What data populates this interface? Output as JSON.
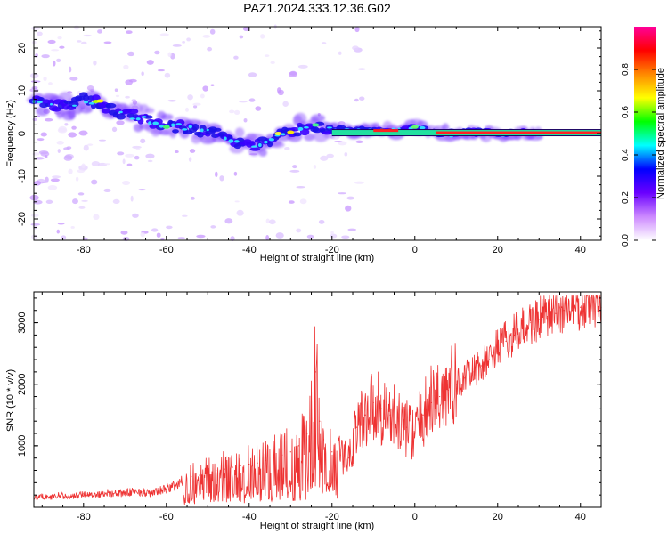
{
  "title": "PAZ1.2024.333.12.36.G02",
  "chart_data": [
    {
      "type": "heatmap",
      "title": "PAZ1.2024.333.12.36.G02",
      "xlabel": "Height of straight line (km)",
      "ylabel": "Frequency (Hz)",
      "xlim": [
        -92,
        45
      ],
      "ylim": [
        -25,
        25
      ],
      "x_ticks": [
        -80,
        -60,
        -40,
        -20,
        0,
        20,
        40
      ],
      "x_tick_labels": [
        "-80",
        "-60",
        "-40",
        "-20",
        "0",
        "20",
        "40"
      ],
      "y_ticks": [
        -20,
        -10,
        0,
        10,
        20
      ],
      "y_tick_labels": [
        "-20",
        "-10",
        "0",
        "10",
        "20"
      ],
      "colorbar": {
        "label": "Normalized spectral amplitude",
        "range": [
          0,
          1
        ],
        "ticks": [
          0.0,
          0.2,
          0.4,
          0.6,
          0.8
        ],
        "tick_labels": [
          "0.0",
          "0.2",
          "0.4",
          "0.6",
          "0.8"
        ],
        "colors": [
          "#ffffff",
          "#cc88ff",
          "#6a00ff",
          "#0000ff",
          "#00ffff",
          "#00ff00",
          "#ffff00",
          "#ff8800",
          "#ff0000",
          "#ff0099"
        ]
      },
      "ridge": {
        "x": [
          -92,
          -88,
          -84,
          -80,
          -76,
          -72,
          -68,
          -64,
          -60,
          -56,
          -52,
          -48,
          -44,
          -40,
          -36,
          -32,
          -28,
          -24,
          -20,
          -16,
          -12,
          -8,
          -4,
          0,
          4,
          8,
          12,
          16,
          20,
          24,
          30,
          45
        ],
        "frequency": [
          8,
          7,
          6,
          8,
          7,
          5,
          4,
          3,
          2,
          1.5,
          0.8,
          0,
          -1.5,
          -3,
          -2,
          0,
          1,
          2,
          1,
          0.8,
          0.5,
          0.7,
          0.5,
          1.5,
          0.3,
          0,
          0.5,
          0.4,
          0.2,
          0.2,
          0.2,
          0.2
        ]
      }
    },
    {
      "type": "line",
      "xlabel": "Height of straight line (km)",
      "ylabel": "SNR (10 * v/v)",
      "xlim": [
        -92,
        45
      ],
      "ylim": [
        0,
        3500
      ],
      "x_ticks": [
        -80,
        -60,
        -40,
        -20,
        0,
        20,
        40
      ],
      "x_tick_labels": [
        "-80",
        "-60",
        "-40",
        "-20",
        "0",
        "20",
        "40"
      ],
      "y_ticks": [
        1000,
        2000,
        3000
      ],
      "y_tick_labels": [
        "1000",
        "2000",
        "3000"
      ],
      "series": [
        {
          "color": "#ee3333",
          "x": [
            -92,
            -90,
            -88,
            -86,
            -84,
            -82,
            -80,
            -78,
            -76,
            -74,
            -72,
            -70,
            -68,
            -66,
            -64,
            -62,
            -60,
            -58,
            -56,
            -54,
            -52,
            -50,
            -48,
            -46,
            -44,
            -42,
            -40,
            -38,
            -36,
            -34,
            -32,
            -30,
            -28,
            -26,
            -25,
            -24,
            -23,
            -22,
            -20,
            -18,
            -16,
            -14,
            -12,
            -10,
            -8,
            -6,
            -4,
            -2,
            0,
            2,
            4,
            6,
            8,
            10,
            12,
            14,
            16,
            18,
            20,
            22,
            24,
            26,
            28,
            30,
            32,
            34,
            36,
            38,
            40,
            42,
            45
          ],
          "y": [
            150,
            180,
            160,
            200,
            170,
            180,
            220,
            200,
            210,
            240,
            220,
            230,
            260,
            250,
            220,
            260,
            300,
            350,
            420,
            500,
            520,
            550,
            600,
            620,
            650,
            680,
            700,
            720,
            760,
            800,
            850,
            900,
            1000,
            1200,
            1600,
            2200,
            1400,
            1100,
            900,
            850,
            800,
            1300,
            1500,
            1700,
            1600,
            1500,
            1400,
            1300,
            1200,
            1500,
            1700,
            1800,
            1900,
            2000,
            2100,
            2200,
            2300,
            2400,
            2600,
            2700,
            2800,
            2900,
            3000,
            3050,
            3100,
            3150,
            3200,
            3200,
            3250,
            3300,
            3250
          ]
        }
      ]
    }
  ]
}
